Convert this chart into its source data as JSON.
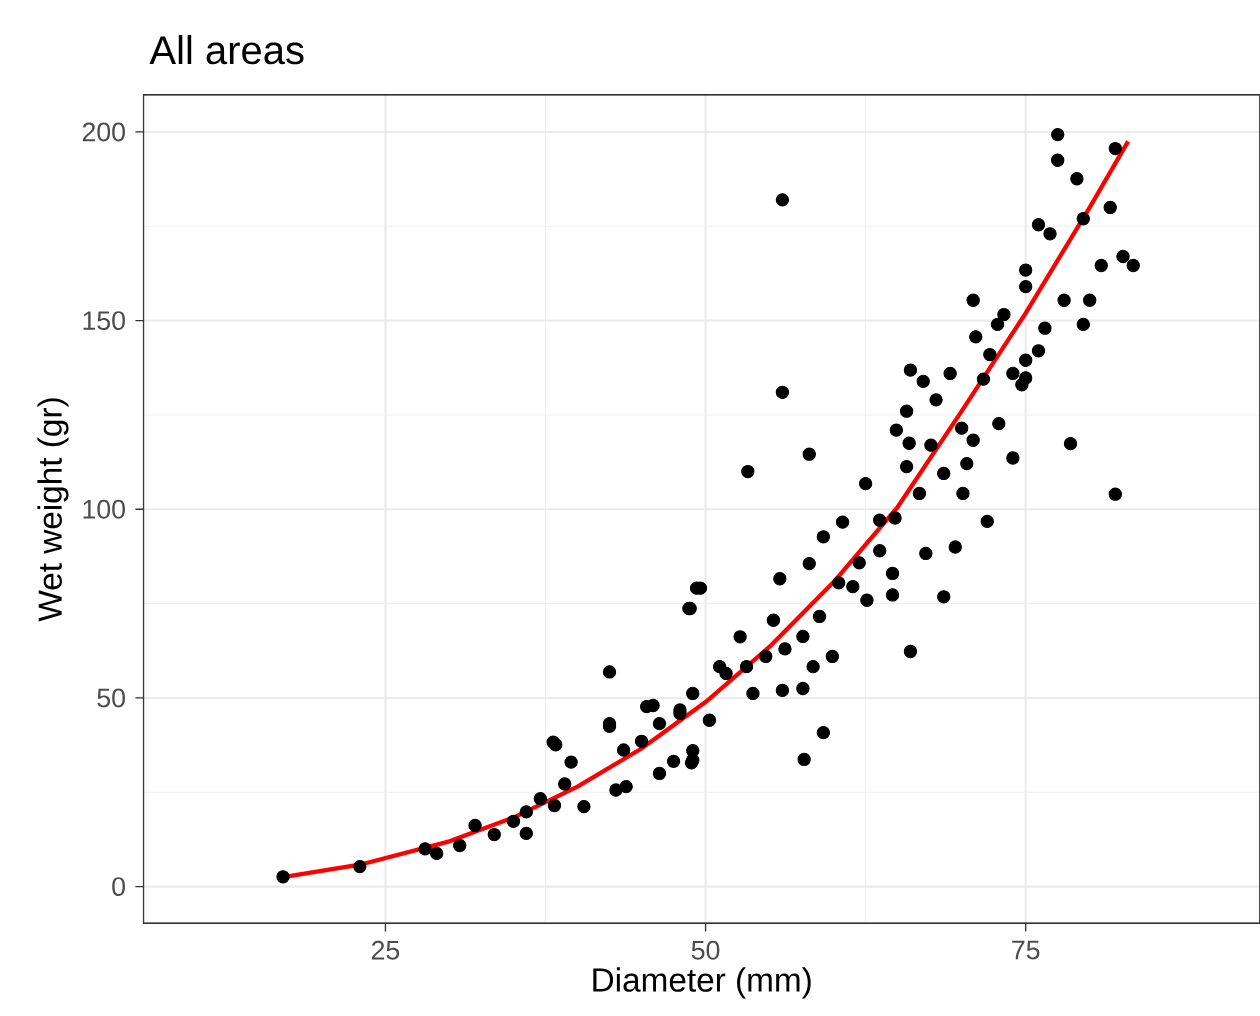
{
  "chart_data": {
    "type": "scatter",
    "title": "All areas",
    "xlabel": "Diameter (mm)",
    "ylabel": "Wet weight (gr)",
    "xlim": [
      6.1,
      93.3
    ],
    "ylim": [
      -9.75,
      209.9
    ],
    "xticks": [
      25,
      50,
      75
    ],
    "yticks": [
      0,
      50,
      100,
      150,
      200
    ],
    "grid": true,
    "series": [
      {
        "marker": "circle",
        "color": "#000000",
        "x": [
          17,
          23,
          28.1,
          29,
          30.8,
          32,
          33.5,
          35,
          36,
          36,
          37.1,
          38.2,
          38.1,
          38.3,
          39.5,
          39,
          40.5,
          42.5,
          42.5,
          42.5,
          43.6,
          43,
          43.8,
          45.4,
          45.9,
          45,
          46.4,
          47.5,
          48.7,
          49.3,
          49,
          48.9,
          49,
          48,
          46.4,
          48,
          49.6,
          48.8,
          49,
          50.3,
          51.1,
          52.7,
          53.7,
          55.8,
          56,
          55.3,
          57.6,
          58.1,
          58.4,
          59.9,
          59.2,
          60.7,
          61.5,
          62.6,
          62.5,
          64.6,
          64.6,
          63.6,
          64.9,
          65.7,
          67.2,
          66,
          67,
          65.7,
          66.7,
          68,
          69.1,
          69.5,
          70.1,
          70.4,
          70.9,
          71.1,
          72,
          72.9,
          74,
          73.3,
          72.8,
          72.2,
          71.7,
          70.9,
          70,
          68.6,
          67.6,
          65.9,
          64.8,
          63.6,
          62,
          60.4,
          58.9,
          57.6,
          56.2,
          54.7,
          53.2,
          51.6,
          75,
          74,
          74.7,
          56,
          56,
          58.1,
          53.3,
          82,
          78.5,
          57.7,
          59.2,
          66,
          68.6,
          77.5,
          77.5,
          82,
          79,
          81.6,
          82.6,
          83.4,
          80.9,
          79.5,
          76,
          76.9,
          75,
          75,
          78,
          79.5,
          80,
          76.5,
          76,
          75
        ],
        "values": [
          2.6,
          5.3,
          10,
          8.8,
          10.9,
          16.2,
          13.8,
          17.3,
          14.1,
          19.8,
          23.3,
          21.5,
          38.3,
          37.6,
          33,
          27.2,
          21.2,
          56.9,
          43.2,
          42.5,
          36.2,
          25.6,
          26.5,
          47.7,
          48,
          38.5,
          43.2,
          33.2,
          73.7,
          79.1,
          51.2,
          32.8,
          36,
          46.8,
          30,
          45.9,
          79.1,
          73.7,
          33.5,
          44.1,
          58.3,
          66.2,
          51.2,
          81.6,
          52,
          70.6,
          52.5,
          85.6,
          58.3,
          61,
          92.7,
          96.6,
          79.5,
          75.9,
          106.8,
          83,
          77.3,
          97.1,
          121,
          111.3,
          88.3,
          136.9,
          133.9,
          126,
          104.2,
          129,
          136,
          90,
          104.2,
          112.1,
          155.4,
          145.7,
          96.8,
          122.7,
          113.6,
          151.6,
          149,
          141,
          134.5,
          118.3,
          121.5,
          109.5,
          117,
          117.5,
          97.7,
          89,
          85.8,
          80.5,
          71.6,
          66.3,
          63,
          61,
          58.3,
          56.5,
          139.5,
          136,
          133,
          182,
          131,
          114.6,
          110,
          104,
          117.4,
          33.7,
          40.8,
          62.3,
          76.8,
          199.3,
          192.5,
          195.6,
          187.6,
          180,
          167,
          164.6,
          164.6,
          177,
          175.4,
          173,
          163.4,
          159,
          155.4,
          149,
          155.4,
          148,
          142,
          134.8
        ]
      },
      {
        "type": "line",
        "marker": "none",
        "color": "#ff0000",
        "x": [
          17,
          23,
          30,
          35,
          40,
          45,
          50,
          55,
          60,
          65,
          70,
          75,
          80,
          83
        ],
        "values": [
          2.5,
          5.8,
          12,
          18.3,
          26.5,
          36.6,
          48.9,
          63.6,
          80.7,
          100.6,
          126,
          152,
          180,
          197.5
        ]
      }
    ]
  }
}
